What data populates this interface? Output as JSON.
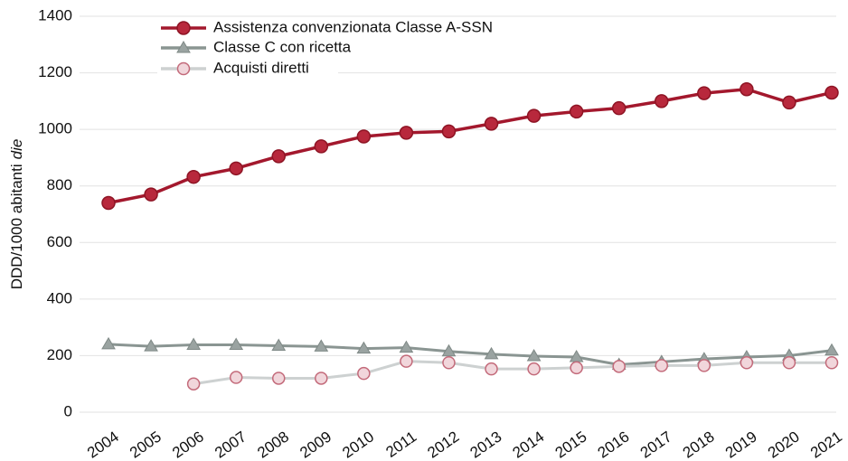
{
  "chart_data": {
    "type": "line",
    "y_label": [
      "DDD/1000 abitanti",
      "die"
    ],
    "categories": [
      "2004",
      "2005",
      "2006",
      "2007",
      "2008",
      "2009",
      "2010",
      "2011",
      "2012",
      "2013",
      "2014",
      "2015",
      "2016",
      "2017",
      "2018",
      "2019",
      "2020",
      "2021"
    ],
    "series": [
      {
        "name": "Assistenza convenzionata Classe A-SSN",
        "color": "#a3182d",
        "marker": "circle",
        "values": [
          740,
          770,
          832,
          862,
          905,
          940,
          975,
          988,
          993,
          1020,
          1048,
          1063,
          1075,
          1100,
          1128,
          1142,
          1095,
          1130
        ]
      },
      {
        "name": "Classe C con ricetta",
        "color": "#8a9592",
        "marker": "triangle",
        "values": [
          240,
          233,
          238,
          238,
          235,
          232,
          225,
          228,
          215,
          205,
          198,
          195,
          168,
          178,
          188,
          195,
          200,
          218
        ]
      },
      {
        "name": "Acquisti diretti",
        "color": "#cdd1d1",
        "marker": "ring",
        "values": [
          null,
          null,
          100,
          123,
          120,
          120,
          137,
          180,
          175,
          153,
          153,
          157,
          162,
          165,
          165,
          175,
          175,
          175
        ]
      }
    ],
    "ylim": [
      0,
      1400
    ],
    "yticks": [
      0,
      200,
      400,
      600,
      800,
      1000,
      1200,
      1400
    ],
    "grid": true,
    "legend": "top-left"
  }
}
